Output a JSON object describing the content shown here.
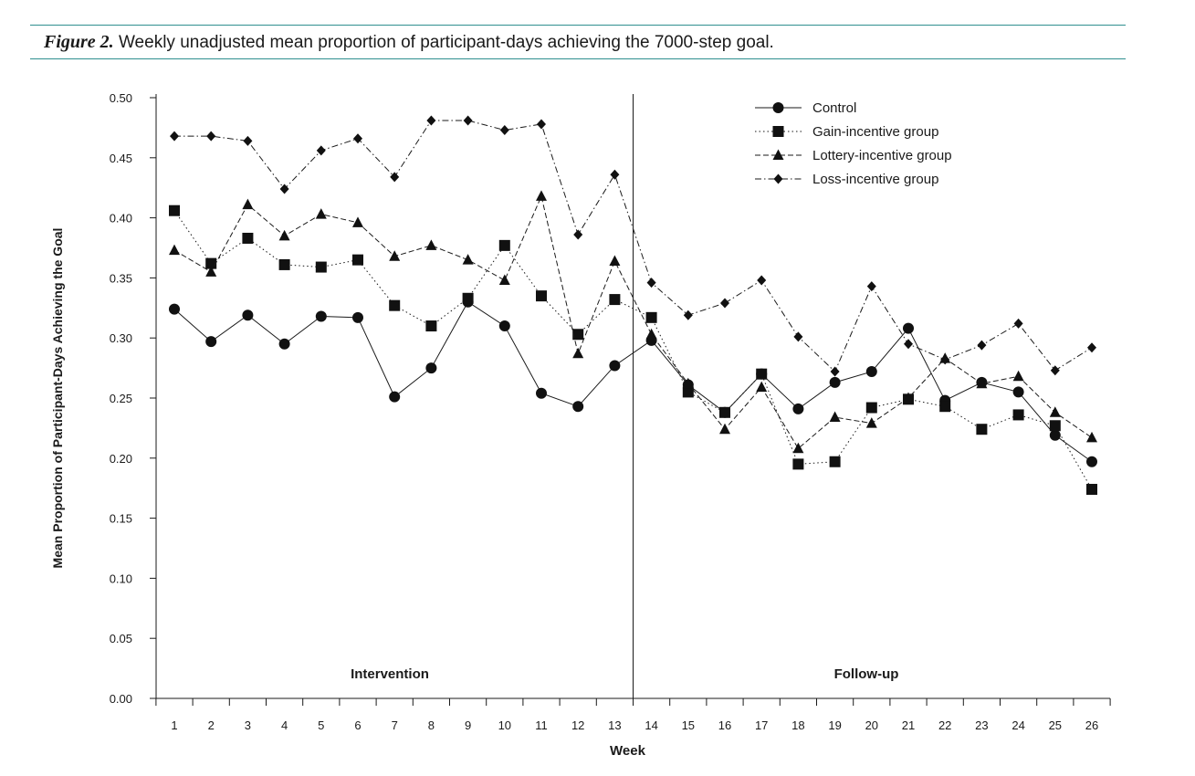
{
  "figure": {
    "label": "Figure 2.",
    "title": "Weekly unadjusted mean proportion of participant-days achieving the 7000-step goal."
  },
  "chart_data": {
    "type": "line",
    "title": "Weekly unadjusted mean proportion of participant-days achieving the 7000-step goal.",
    "xlabel": "Week",
    "ylabel": "Mean Proportion of Participant-Days Achieving the Goal",
    "ylim": [
      0,
      0.5
    ],
    "yticks": [
      "0.00",
      "0.05",
      "0.10",
      "0.15",
      "0.20",
      "0.25",
      "0.30",
      "0.35",
      "0.40",
      "0.45",
      "0.50"
    ],
    "categories": [
      "1",
      "2",
      "3",
      "4",
      "5",
      "6",
      "7",
      "8",
      "9",
      "10",
      "11",
      "12",
      "13",
      "14",
      "15",
      "16",
      "17",
      "18",
      "19",
      "20",
      "21",
      "22",
      "23",
      "24",
      "25",
      "26"
    ],
    "phase_divider_after_week": 13,
    "phases": [
      "Intervention",
      "Follow-up"
    ],
    "legend_position": "top-right",
    "series": [
      {
        "name": "Control",
        "marker": "circle",
        "line": "solid",
        "values": [
          0.324,
          0.297,
          0.319,
          0.295,
          0.318,
          0.317,
          0.251,
          0.275,
          0.33,
          0.31,
          0.254,
          0.243,
          0.277,
          0.298,
          0.261,
          0.238,
          0.27,
          0.241,
          0.263,
          0.272,
          0.308,
          0.248,
          0.263,
          0.255,
          0.219,
          0.197
        ]
      },
      {
        "name": "Gain-incentive group",
        "marker": "square",
        "line": "dotted",
        "values": [
          0.406,
          0.362,
          0.383,
          0.361,
          0.359,
          0.365,
          0.327,
          0.31,
          0.333,
          0.377,
          0.335,
          0.303,
          0.332,
          0.317,
          0.255,
          0.238,
          0.27,
          0.195,
          0.197,
          0.242,
          0.249,
          0.243,
          0.224,
          0.236,
          0.227,
          0.174
        ]
      },
      {
        "name": "Lottery-incentive group",
        "marker": "triangle",
        "line": "dashed",
        "values": [
          0.373,
          0.355,
          0.411,
          0.385,
          0.403,
          0.396,
          0.368,
          0.377,
          0.365,
          0.348,
          0.418,
          0.287,
          0.364,
          0.303,
          0.262,
          0.224,
          0.259,
          0.208,
          0.234,
          0.229,
          0.25,
          0.283,
          0.262,
          0.268,
          0.238,
          0.217
        ]
      },
      {
        "name": "Loss-incentive group",
        "marker": "diamond",
        "line": "dashdot",
        "values": [
          0.468,
          0.468,
          0.464,
          0.424,
          0.456,
          0.466,
          0.434,
          0.481,
          0.481,
          0.473,
          0.478,
          0.386,
          0.436,
          0.346,
          0.319,
          0.329,
          0.348,
          0.301,
          0.272,
          0.343,
          0.295,
          0.282,
          0.294,
          0.312,
          0.273,
          0.292
        ]
      }
    ]
  }
}
